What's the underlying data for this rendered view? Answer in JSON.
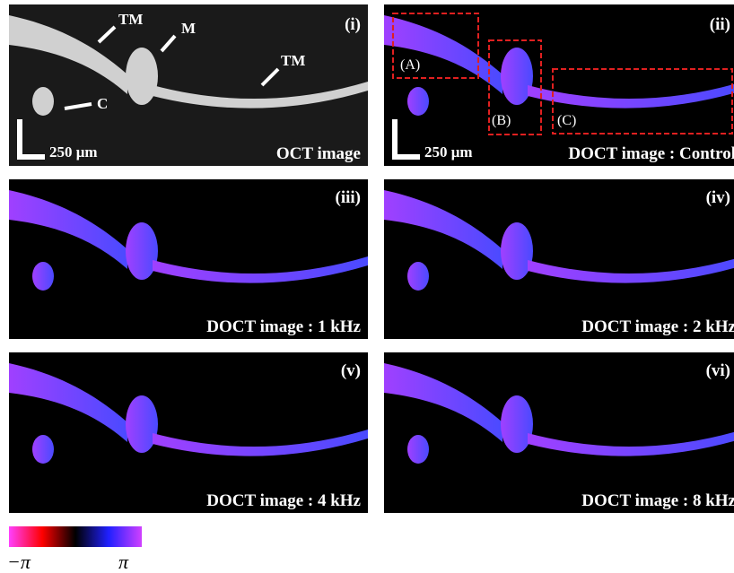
{
  "panels": [
    {
      "label": "(i)",
      "caption": "OCT image",
      "scale_bar": "250 μm",
      "annotations": [
        "TM",
        "M",
        "TM",
        "C"
      ]
    },
    {
      "label": "(ii)",
      "caption": "DOCT image : Control",
      "scale_bar": "250 μm",
      "regions": [
        "(A)",
        "(B)",
        "(C)"
      ]
    },
    {
      "label": "(iii)",
      "caption": "DOCT image : 1 kHz"
    },
    {
      "label": "(iv)",
      "caption": "DOCT image : 2 kHz"
    },
    {
      "label": "(v)",
      "caption": "DOCT image : 4 kHz"
    },
    {
      "label": "(vi)",
      "caption": "DOCT image : 8 kHz"
    }
  ],
  "colorbar": {
    "min_label": "−π",
    "max_label": "π"
  }
}
